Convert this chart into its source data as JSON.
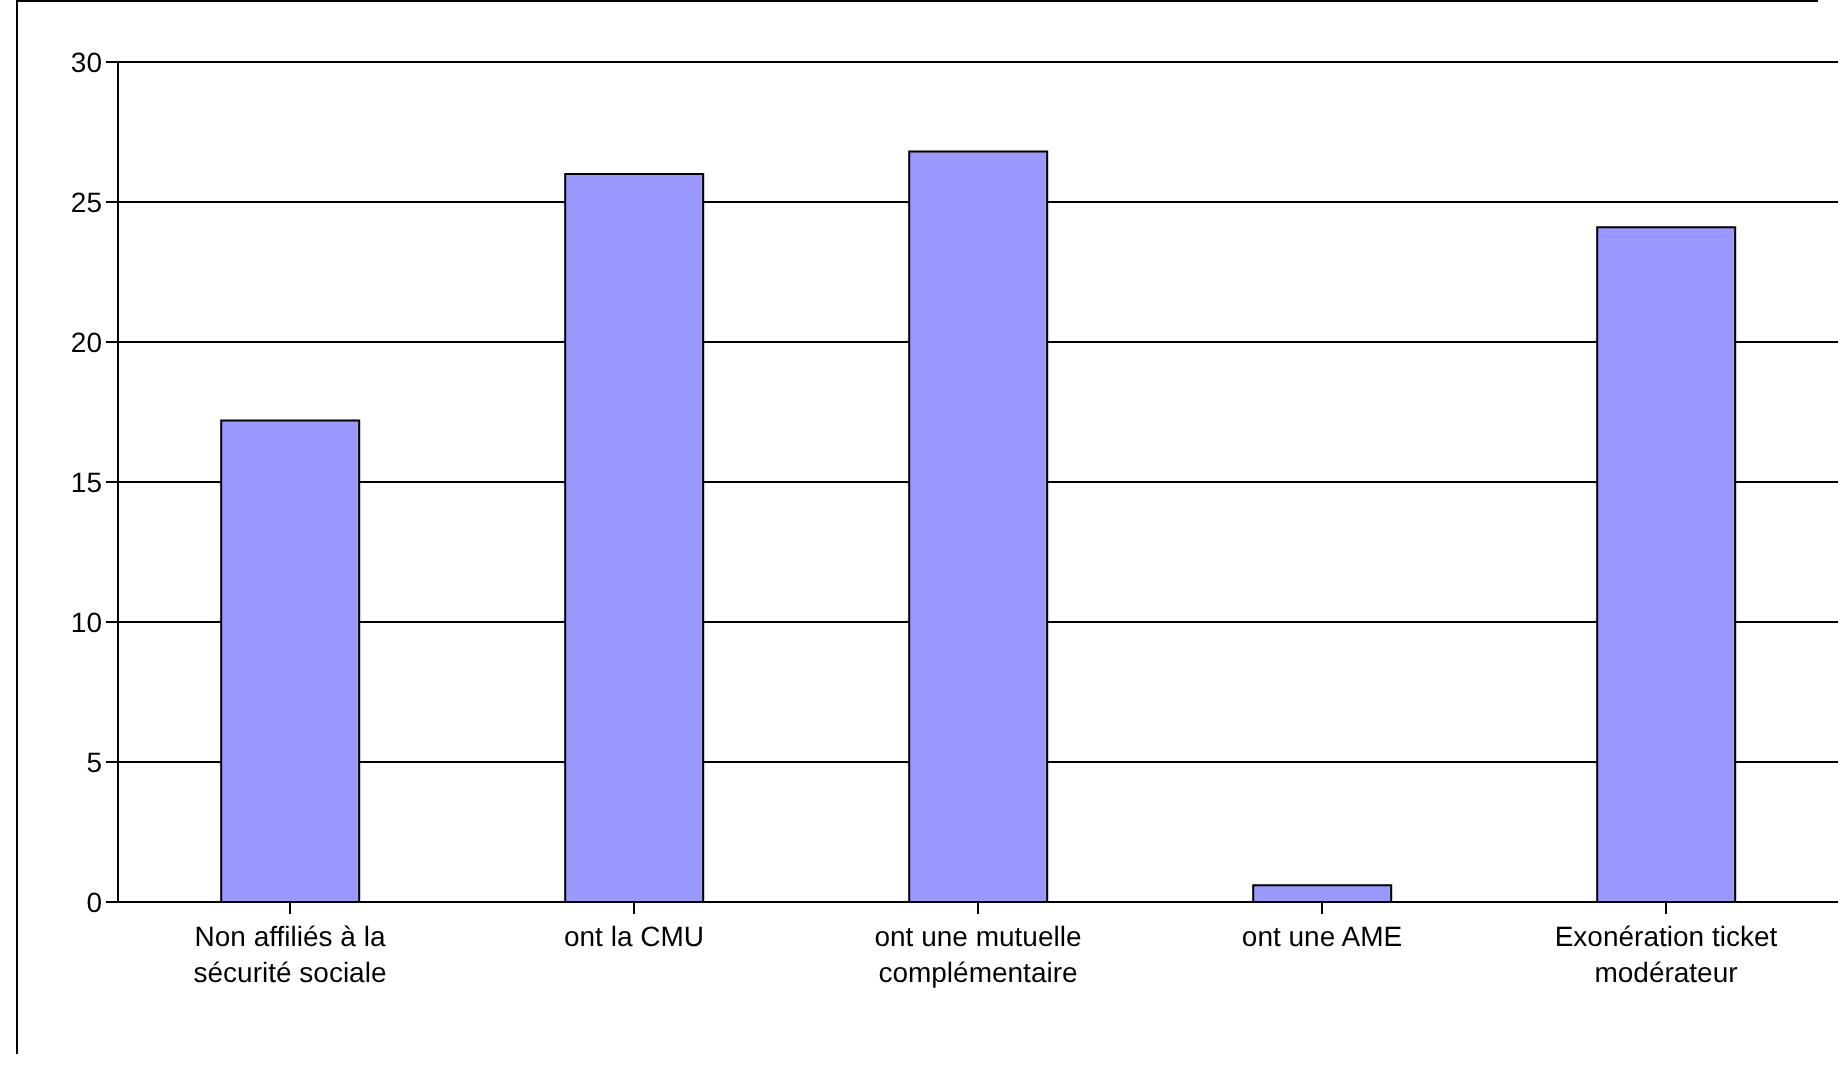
{
  "chart_data": {
    "type": "bar",
    "categories": [
      "Non affiliés à la sécurité sociale",
      "ont la CMU",
      "ont une mutuelle complémentaire",
      "ont une AME",
      "Exonération ticket modérateur"
    ],
    "values": [
      17.2,
      26.0,
      26.8,
      0.6,
      24.1
    ],
    "color": "#9999ff",
    "ylim": [
      0,
      30
    ],
    "yticks": [
      0,
      5,
      10,
      15,
      20,
      25,
      30
    ],
    "grid": "y"
  }
}
